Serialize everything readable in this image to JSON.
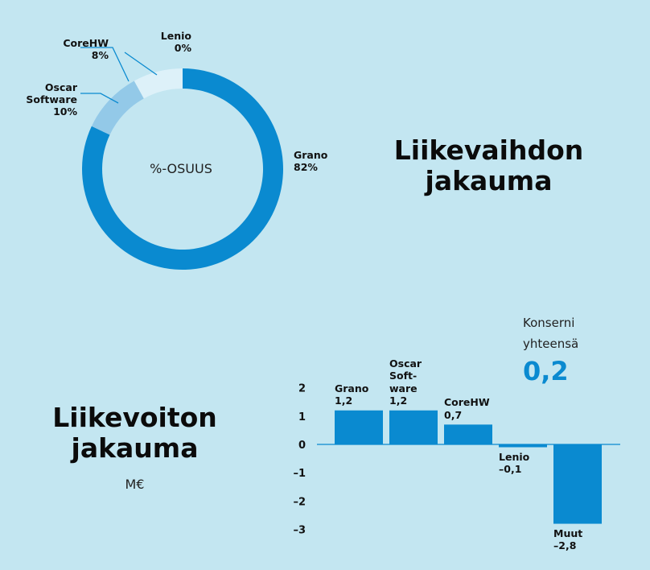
{
  "revenue_section": {
    "title_line1": "Liikevaihdon",
    "title_line2": "jakauma",
    "center_label": "%-OSUUS"
  },
  "profit_section": {
    "title_line1": "Liikevoiton",
    "title_line2": "jakauma",
    "unit": "M€",
    "total_label_line1": "Konserni",
    "total_label_line2": "yhteensä",
    "total_value": "0,2"
  },
  "colors": {
    "background": "#c3e6f1",
    "primary": "#0a8ad0",
    "oscar": "#93c9e8",
    "corehw": "#ddf1f9",
    "lenio": "#ddf1f9"
  },
  "chart_data": [
    {
      "type": "pie",
      "categories": [
        "Grano",
        "Oscar Software",
        "CoreHW",
        "Lenio"
      ],
      "values": [
        82,
        10,
        8,
        0
      ],
      "value_labels": [
        "82%",
        "10%",
        "8%",
        "0%"
      ],
      "label_lines": [
        [
          "Grano"
        ],
        [
          "Oscar",
          "Software"
        ],
        [
          "CoreHW"
        ],
        [
          "Lenio"
        ]
      ],
      "colors": [
        "#0a8ad0",
        "#93c9e8",
        "#ddf1f9",
        "#ddf1f9"
      ]
    },
    {
      "type": "bar",
      "categories": [
        "Grano",
        "Oscar Software",
        "CoreHW",
        "Lenio",
        "Muut"
      ],
      "label_lines": [
        [
          "Grano"
        ],
        [
          "Oscar",
          "Soft-",
          "ware"
        ],
        [
          "CoreHW"
        ],
        [
          "Lenio"
        ],
        [
          "Muut"
        ]
      ],
      "values": [
        1.2,
        1.2,
        0.7,
        -0.1,
        -2.8
      ],
      "value_labels": [
        "1,2",
        "1,2",
        "0,7",
        "–0,1",
        "–2,8"
      ],
      "ylim": [
        -3,
        2
      ],
      "yticks": [
        2,
        1,
        0,
        -1,
        -2,
        -3
      ],
      "ytick_labels": [
        "2",
        "1",
        "0",
        "–1",
        "–2",
        "–3"
      ]
    }
  ]
}
